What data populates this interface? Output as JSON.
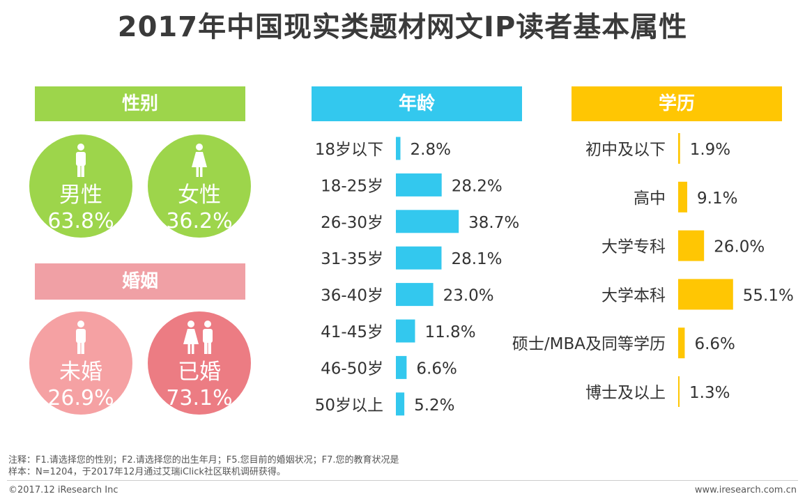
{
  "title": "2017年中国现实类题材网文IP读者基本属性",
  "colors": {
    "gender": "#9dd54b",
    "age": "#33c8ee",
    "education": "#ffc603",
    "marriage_header": "#f0a0a5",
    "single": "#f5a1a3",
    "married": "#ec7c83"
  },
  "gender": {
    "header": "性别",
    "male": {
      "label": "男性",
      "value": "63.8%",
      "icon": "male-person-icon"
    },
    "female": {
      "label": "女性",
      "value": "36.2%",
      "icon": "female-person-icon"
    }
  },
  "marriage": {
    "header": "婚姻",
    "single": {
      "label": "未婚",
      "value": "26.9%",
      "icon": "single-person-icon"
    },
    "married": {
      "label": "已婚",
      "value": "73.1%",
      "icon": "couple-icon"
    }
  },
  "age": {
    "header": "年龄"
  },
  "education": {
    "header": "学历"
  },
  "chart_data": [
    {
      "type": "bar",
      "orientation": "horizontal",
      "title": "年龄",
      "categories": [
        "18岁以下",
        "18-25岁",
        "26-30岁",
        "31-35岁",
        "36-40岁",
        "41-45岁",
        "46-50岁",
        "50岁以上"
      ],
      "values": [
        2.8,
        28.2,
        38.7,
        28.1,
        23.0,
        11.8,
        6.6,
        5.2
      ],
      "labels": [
        "2.8%",
        "28.2%",
        "38.7%",
        "28.1%",
        "23.0%",
        "11.8%",
        "6.6%",
        "5.2%"
      ],
      "unit": "%",
      "xlim": [
        0,
        100
      ]
    },
    {
      "type": "bar",
      "orientation": "horizontal",
      "title": "学历",
      "categories": [
        "初中及以下",
        "高中",
        "大学专科",
        "大学本科",
        "硕士/MBA及同等学历",
        "博士及以上"
      ],
      "values": [
        1.9,
        9.1,
        26.0,
        55.1,
        6.6,
        1.3
      ],
      "labels": [
        "1.9%",
        "9.1%",
        "26.0%",
        "55.1%",
        "6.6%",
        "1.3%"
      ],
      "unit": "%",
      "xlim": [
        0,
        100
      ]
    }
  ],
  "footnotes": {
    "note": "注释：F1.请选择您的性别；F2.请选择您的出生年月；F5.您目前的婚姻状况；F7.您的教育状况是",
    "sample": "样本：N=1204，于2017年12月通过艾瑞iClick社区联机调研获得。"
  },
  "footer": {
    "copyright": "©2017.12 iResearch Inc",
    "website": "www.iresearch.com.cn"
  }
}
